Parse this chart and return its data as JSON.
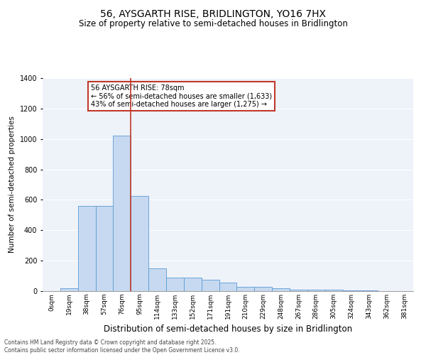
{
  "title": "56, AYSGARTH RISE, BRIDLINGTON, YO16 7HX",
  "subtitle": "Size of property relative to semi-detached houses in Bridlington",
  "xlabel": "Distribution of semi-detached houses by size in Bridlington",
  "ylabel": "Number of semi-detached properties",
  "bin_labels": [
    "0sqm",
    "19sqm",
    "38sqm",
    "57sqm",
    "76sqm",
    "95sqm",
    "114sqm",
    "133sqm",
    "152sqm",
    "171sqm",
    "191sqm",
    "210sqm",
    "229sqm",
    "248sqm",
    "267sqm",
    "286sqm",
    "305sqm",
    "324sqm",
    "343sqm",
    "362sqm",
    "381sqm"
  ],
  "bar_heights": [
    0,
    20,
    560,
    560,
    1020,
    625,
    150,
    90,
    90,
    75,
    55,
    30,
    30,
    20,
    10,
    10,
    8,
    5,
    3,
    2,
    2
  ],
  "bar_color": "#c6d9f0",
  "bar_edge_color": "#5b9bd5",
  "vline_color": "#c0392b",
  "vline_x_index": 4,
  "annotation_text": "56 AYSGARTH RISE: 78sqm\n← 56% of semi-detached houses are smaller (1,633)\n43% of semi-detached houses are larger (1,275) →",
  "annotation_box_color": "#ffffff",
  "annotation_box_edge": "#c0392b",
  "ylim": [
    0,
    1400
  ],
  "yticks": [
    0,
    200,
    400,
    600,
    800,
    1000,
    1200,
    1400
  ],
  "footnote": "Contains HM Land Registry data © Crown copyright and database right 2025.\nContains public sector information licensed under the Open Government Licence v3.0.",
  "bg_color": "#eef2f9",
  "title_fontsize": 10,
  "subtitle_fontsize": 8.5,
  "ylabel_fontsize": 7.5,
  "xlabel_fontsize": 8.5,
  "tick_fontsize": 6.5,
  "annotation_fontsize": 7,
  "footnote_fontsize": 5.5
}
